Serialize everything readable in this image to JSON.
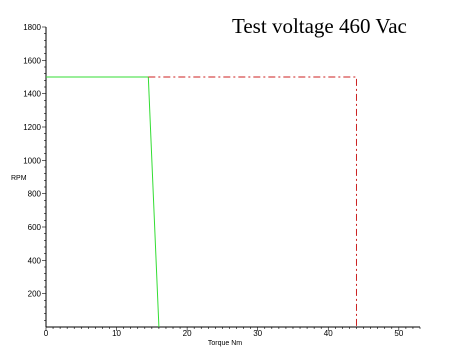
{
  "chart_data": {
    "type": "line",
    "title": "Test voltage 460 Vac",
    "xlabel": "Torque Nm",
    "ylabel": "RPM",
    "xlim": [
      0,
      53
    ],
    "ylim": [
      0,
      1800
    ],
    "x_ticks": [
      0,
      10,
      20,
      30,
      40,
      50
    ],
    "y_ticks": [
      200,
      400,
      600,
      800,
      1000,
      1200,
      1400,
      1600,
      1800
    ],
    "grid": false,
    "series": [
      {
        "color": "#33dd33",
        "style": "solid",
        "points": [
          [
            0,
            1500
          ],
          [
            14.5,
            1500
          ],
          [
            16,
            0
          ]
        ]
      },
      {
        "color": "#cc2222",
        "style": "dash-dot",
        "points": [
          [
            14.5,
            1500
          ],
          [
            44,
            1500
          ],
          [
            44,
            0
          ]
        ]
      }
    ]
  }
}
